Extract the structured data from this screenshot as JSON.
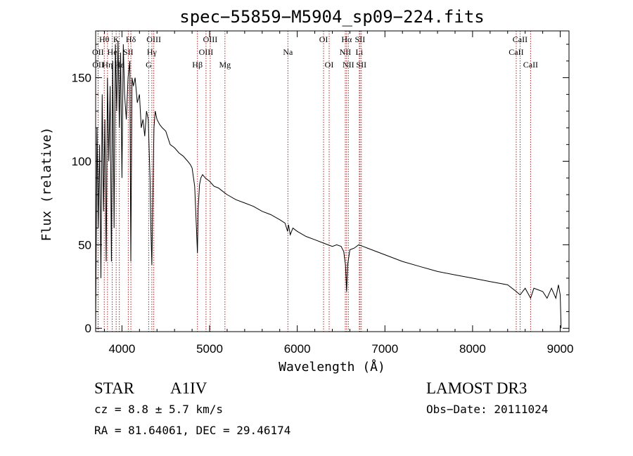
{
  "chart_data": {
    "type": "line",
    "title": "spec−55859−M5904_sp09−224.fits",
    "xlabel": "Wavelength (Å)",
    "ylabel": "Flux (relative)",
    "xlim": [
      3700,
      9100
    ],
    "ylim": [
      -2,
      178
    ],
    "x_ticks": [
      4000,
      5000,
      6000,
      7000,
      8000,
      9000
    ],
    "y_ticks": [
      0,
      50,
      100,
      150
    ],
    "series": [
      {
        "name": "flux",
        "x": [
          3700,
          3715,
          3730,
          3745,
          3760,
          3775,
          3790,
          3805,
          3820,
          3835,
          3850,
          3865,
          3880,
          3895,
          3910,
          3925,
          3940,
          3955,
          3970,
          3985,
          4000,
          4015,
          4030,
          4050,
          4070,
          4090,
          4101,
          4115,
          4130,
          4150,
          4175,
          4200,
          4220,
          4240,
          4260,
          4280,
          4300,
          4320,
          4330,
          4341,
          4350,
          4365,
          4380,
          4400,
          4430,
          4460,
          4500,
          4550,
          4600,
          4650,
          4700,
          4750,
          4780,
          4800,
          4830,
          4850,
          4861,
          4870,
          4885,
          4900,
          4920,
          4950,
          5000,
          5050,
          5100,
          5150,
          5200,
          5300,
          5400,
          5500,
          5600,
          5700,
          5800,
          5860,
          5890,
          5900,
          5920,
          5950,
          6000,
          6100,
          6200,
          6300,
          6400,
          6450,
          6500,
          6530,
          6550,
          6563,
          6575,
          6600,
          6650,
          6700,
          6750,
          6800,
          6900,
          7000,
          7200,
          7400,
          7600,
          7800,
          8000,
          8200,
          8400,
          8498,
          8542,
          8600,
          8662,
          8700,
          8800,
          8850,
          8900,
          8950,
          8980,
          9000,
          9010
        ],
        "y": [
          0,
          120,
          60,
          110,
          30,
          140,
          70,
          125,
          40,
          150,
          100,
          145,
          40,
          160,
          60,
          170,
          130,
          172,
          120,
          165,
          90,
          170,
          140,
          125,
          150,
          160,
          40,
          150,
          145,
          150,
          135,
          140,
          120,
          125,
          115,
          130,
          125,
          90,
          60,
          38,
          70,
          120,
          130,
          125,
          122,
          120,
          118,
          110,
          108,
          105,
          103,
          100,
          98,
          96,
          85,
          60,
          45,
          72,
          86,
          90,
          92,
          90,
          88,
          85,
          84,
          82,
          80,
          77,
          75,
          73,
          70,
          68,
          65,
          63,
          58,
          62,
          56,
          60,
          58,
          55,
          53,
          51,
          49,
          50,
          49,
          46,
          38,
          22,
          38,
          47,
          48,
          50,
          49,
          48,
          46,
          44,
          40,
          37,
          34,
          32,
          30,
          28,
          26,
          22,
          20,
          24,
          18,
          24,
          22,
          18,
          24,
          18,
          26,
          20,
          0
        ]
      }
    ],
    "spectral_lines": [
      {
        "label": "Hθ",
        "wl": 3798,
        "row": 0
      },
      {
        "label": "OII",
        "wl": 3727,
        "row": 1
      },
      {
        "label": "OII",
        "wl": 3729,
        "row": 2
      },
      {
        "label": "K",
        "wl": 3934,
        "row": 0
      },
      {
        "label": "He",
        "wl": 3889,
        "row": 1
      },
      {
        "label": "Hη",
        "wl": 3835,
        "row": 2
      },
      {
        "label": "Hε",
        "wl": 3970,
        "row": 2
      },
      {
        "label": "Hδ",
        "wl": 4102,
        "row": 0
      },
      {
        "label": "SII",
        "wl": 4072,
        "row": 1
      },
      {
        "label": "OIII",
        "wl": 4363,
        "row": 0
      },
      {
        "label": "Hγ",
        "wl": 4341,
        "row": 1
      },
      {
        "label": "G",
        "wl": 4305,
        "row": 2
      },
      {
        "label": "Hβ",
        "wl": 4861,
        "row": 2
      },
      {
        "label": "OIII",
        "wl": 5007,
        "row": 0
      },
      {
        "label": "OIII",
        "wl": 4959,
        "row": 1
      },
      {
        "label": "Mg",
        "wl": 5175,
        "row": 2
      },
      {
        "label": "Na",
        "wl": 5893,
        "row": 1
      },
      {
        "label": "OI",
        "wl": 6300,
        "row": 0
      },
      {
        "label": "OI",
        "wl": 6364,
        "row": 2
      },
      {
        "label": "Hα",
        "wl": 6563,
        "row": 0
      },
      {
        "label": "NII",
        "wl": 6548,
        "row": 1
      },
      {
        "label": "NII",
        "wl": 6583,
        "row": 2
      },
      {
        "label": "SII",
        "wl": 6716,
        "row": 0
      },
      {
        "label": "Li",
        "wl": 6708,
        "row": 1
      },
      {
        "label": "SII",
        "wl": 6731,
        "row": 2
      },
      {
        "label": "CaII",
        "wl": 8542,
        "row": 0
      },
      {
        "label": "CaII",
        "wl": 8498,
        "row": 1
      },
      {
        "label": "CaII",
        "wl": 8662,
        "row": 2
      }
    ]
  },
  "info": {
    "object_class": "STAR",
    "subclass": "A1IV",
    "survey": "LAMOST DR3",
    "cz": "cz = 8.8 ± 5.7 km/s",
    "obs_date": "Obs−Date: 20111024",
    "radec": "RA =  81.64061, DEC =  29.46174"
  },
  "colors": {
    "line_marker": "#b22222",
    "spectrum": "#000000"
  }
}
